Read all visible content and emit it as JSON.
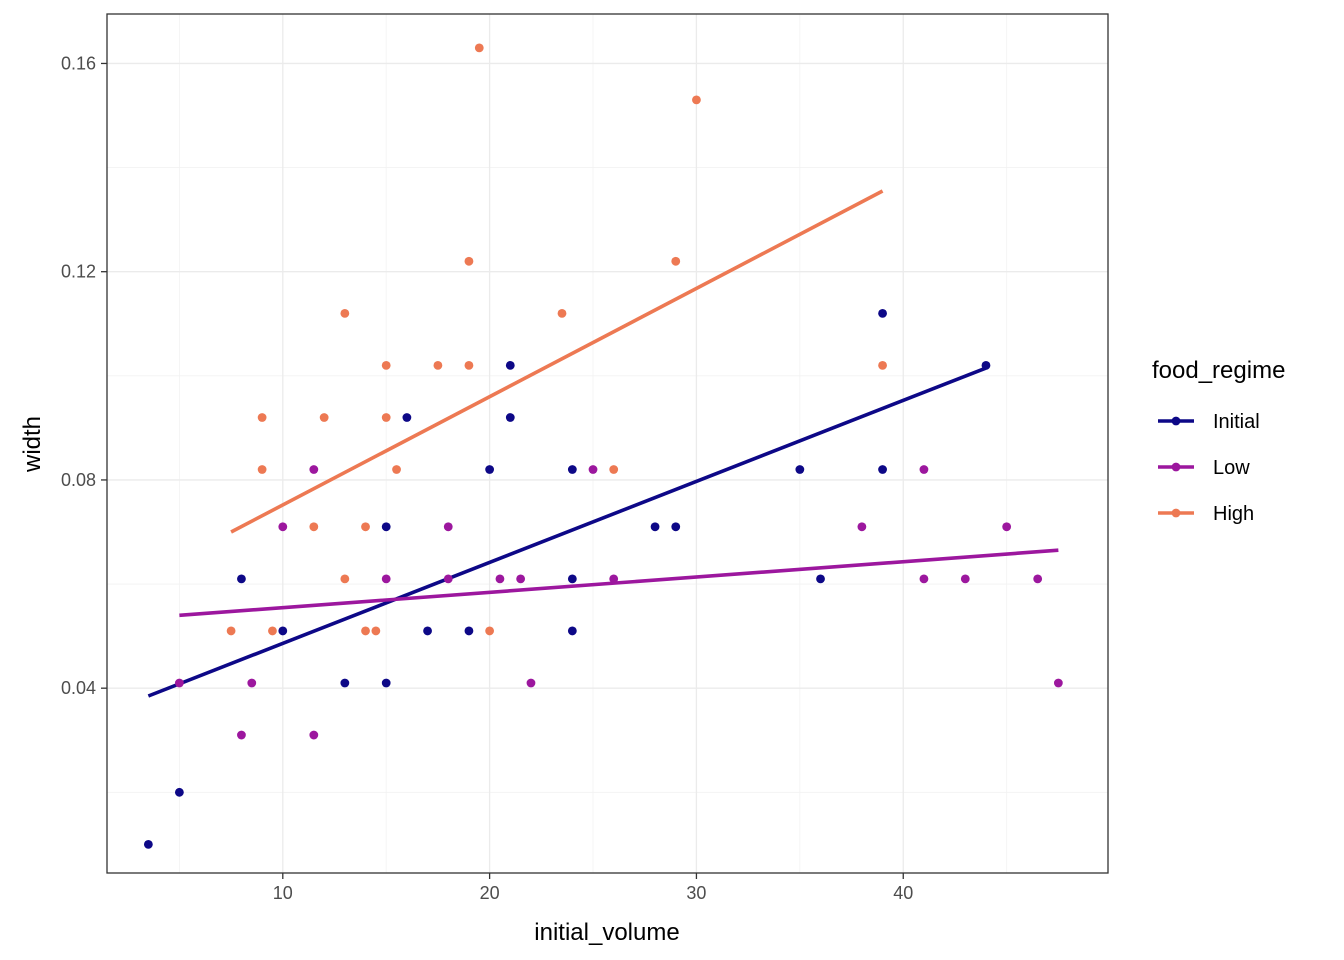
{
  "chart_data": {
    "type": "scatter",
    "title": "",
    "xlabel": "initial_volume",
    "ylabel": "width",
    "xlim": [
      1.5,
      49.9
    ],
    "ylim": [
      0.0045,
      0.1695
    ],
    "x_ticks": [
      10,
      20,
      30,
      40
    ],
    "x_tick_labels": [
      "10",
      "20",
      "30",
      "40"
    ],
    "y_ticks": [
      0.04,
      0.08,
      0.12,
      0.16
    ],
    "y_tick_labels": [
      "0.04",
      "0.08",
      "0.12",
      "0.16"
    ],
    "y_minor_ticks": [
      0.02,
      0.06,
      0.1,
      0.14
    ],
    "x_minor_ticks": [
      5,
      15,
      25,
      35,
      45
    ],
    "grid": true,
    "legend": {
      "title": "food_regime",
      "position": "right"
    },
    "series": [
      {
        "name": "Initial",
        "color": "#0d0887",
        "points": [
          [
            3.5,
            0.01
          ],
          [
            5,
            0.02
          ],
          [
            8,
            0.061
          ],
          [
            10,
            0.051
          ],
          [
            13,
            0.041
          ],
          [
            15,
            0.041
          ],
          [
            15,
            0.071
          ],
          [
            16,
            0.092
          ],
          [
            17,
            0.051
          ],
          [
            19,
            0.051
          ],
          [
            20,
            0.082
          ],
          [
            21,
            0.102
          ],
          [
            21,
            0.092
          ],
          [
            24,
            0.082
          ],
          [
            24,
            0.061
          ],
          [
            24,
            0.051
          ],
          [
            28,
            0.071
          ],
          [
            29,
            0.071
          ],
          [
            35,
            0.082
          ],
          [
            36,
            0.061
          ],
          [
            39,
            0.112
          ],
          [
            39,
            0.082
          ],
          [
            44,
            0.102
          ]
        ],
        "fit": [
          [
            3.5,
            0.0385
          ],
          [
            44,
            0.1015
          ]
        ]
      },
      {
        "name": "Low",
        "color": "#9c179e",
        "points": [
          [
            5,
            0.041
          ],
          [
            8,
            0.031
          ],
          [
            8.5,
            0.041
          ],
          [
            10,
            0.071
          ],
          [
            11.5,
            0.082
          ],
          [
            11.5,
            0.031
          ],
          [
            15,
            0.061
          ],
          [
            18,
            0.061
          ],
          [
            18,
            0.071
          ],
          [
            20.5,
            0.061
          ],
          [
            21.5,
            0.061
          ],
          [
            22,
            0.041
          ],
          [
            25,
            0.082
          ],
          [
            26,
            0.061
          ],
          [
            38,
            0.071
          ],
          [
            41,
            0.082
          ],
          [
            41,
            0.061
          ],
          [
            43,
            0.061
          ],
          [
            45,
            0.071
          ],
          [
            46.5,
            0.061
          ],
          [
            47.5,
            0.041
          ]
        ],
        "fit": [
          [
            5,
            0.054
          ],
          [
            47.5,
            0.0665
          ]
        ]
      },
      {
        "name": "High",
        "color": "#ed7953",
        "points": [
          [
            7.5,
            0.051
          ],
          [
            9,
            0.092
          ],
          [
            9,
            0.082
          ],
          [
            9.5,
            0.051
          ],
          [
            11.5,
            0.071
          ],
          [
            12,
            0.092
          ],
          [
            13,
            0.112
          ],
          [
            13,
            0.061
          ],
          [
            14,
            0.071
          ],
          [
            14,
            0.051
          ],
          [
            14.5,
            0.051
          ],
          [
            15,
            0.102
          ],
          [
            15,
            0.092
          ],
          [
            15.5,
            0.082
          ],
          [
            17.5,
            0.102
          ],
          [
            19,
            0.122
          ],
          [
            19,
            0.102
          ],
          [
            19.5,
            0.163
          ],
          [
            20,
            0.051
          ],
          [
            23.5,
            0.112
          ],
          [
            26,
            0.082
          ],
          [
            29,
            0.122
          ],
          [
            30,
            0.153
          ],
          [
            39,
            0.102
          ]
        ],
        "fit": [
          [
            7.5,
            0.07
          ],
          [
            39,
            0.1355
          ]
        ]
      }
    ]
  }
}
